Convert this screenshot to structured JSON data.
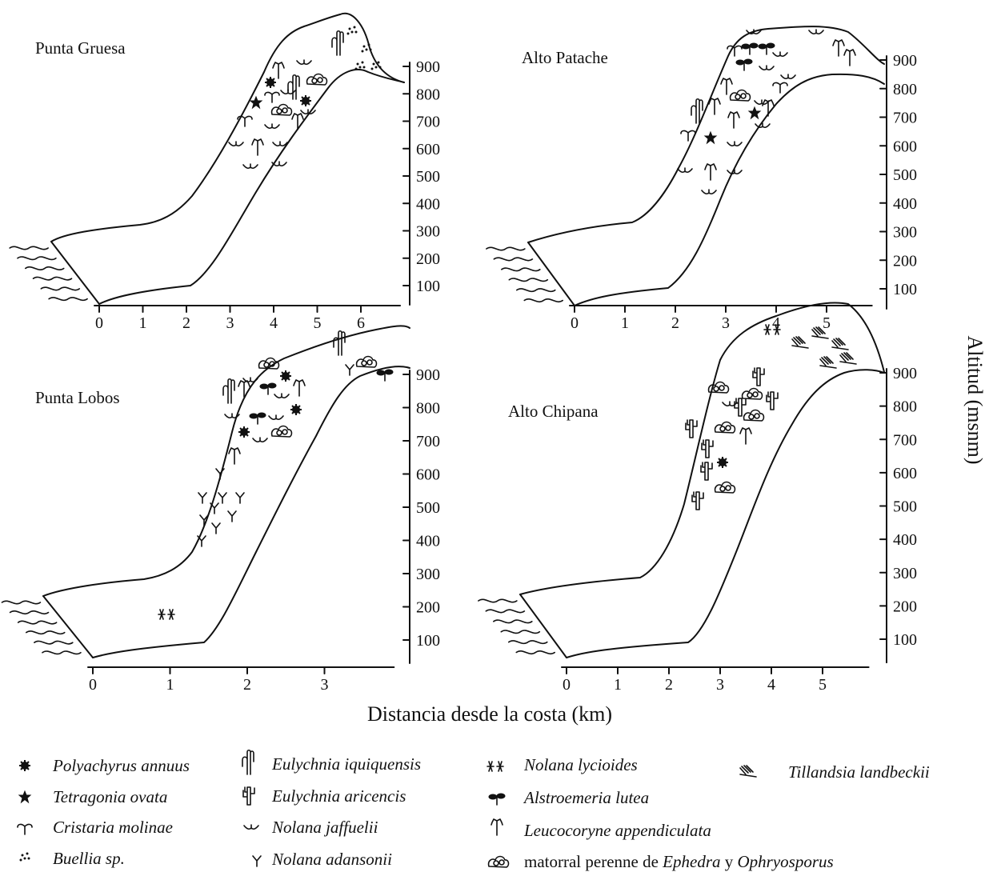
{
  "axes": {
    "x_title": "Distancia desde la costa (km)",
    "y_title": "Altitud (msnm)",
    "y_ticks": [
      "100",
      "200",
      "300",
      "400",
      "500",
      "600",
      "700",
      "800",
      "900"
    ]
  },
  "panels": [
    {
      "title": "Punta Gruesa",
      "x_ticks": [
        "0",
        "1",
        "2",
        "3",
        "4",
        "5",
        "6"
      ]
    },
    {
      "title": "Alto Patache",
      "x_ticks": [
        "0",
        "1",
        "2",
        "3",
        "4",
        "5"
      ]
    },
    {
      "title": "Punta Lobos",
      "x_ticks": [
        "0",
        "1",
        "2",
        "3"
      ]
    },
    {
      "title": "Alto Chipana",
      "x_ticks": [
        "0",
        "1",
        "2",
        "3",
        "4",
        "5"
      ]
    }
  ],
  "legend": [
    {
      "icon": "polyachyrus-icon",
      "label": "Polyachyrus annuus"
    },
    {
      "icon": "tetragonia-icon",
      "label": "Tetragonia ovata"
    },
    {
      "icon": "cristaria-icon",
      "label": "Cristaria molinae"
    },
    {
      "icon": "buellia-icon",
      "label": "Buellia sp."
    },
    {
      "icon": "eulychnia-iquiquensis-icon",
      "label": "Eulychnia iquiquensis"
    },
    {
      "icon": "eulychnia-aricencis-icon",
      "label": "Eulychnia aricencis"
    },
    {
      "icon": "nolana-jaffuelii-icon",
      "label": "Nolana jaffuelii"
    },
    {
      "icon": "nolana-adansonii-icon",
      "label": "Nolana adansonii"
    },
    {
      "icon": "nolana-lycioides-icon",
      "label": "Nolana lycioides"
    },
    {
      "icon": "alstroemeria-icon",
      "label": "Alstroemeria lutea"
    },
    {
      "icon": "leucocoryne-icon",
      "label": "Leucocoryne appendiculata"
    },
    {
      "icon": "tillandsia-icon",
      "label": "Tillandsia landbeckii"
    },
    {
      "icon": "matorral-icon",
      "label_plain": "matorral perenne de ",
      "label_italic_1": "Ephedra",
      "label_plain_2": " y ",
      "label_italic_2": "Ophryosporus"
    }
  ]
}
